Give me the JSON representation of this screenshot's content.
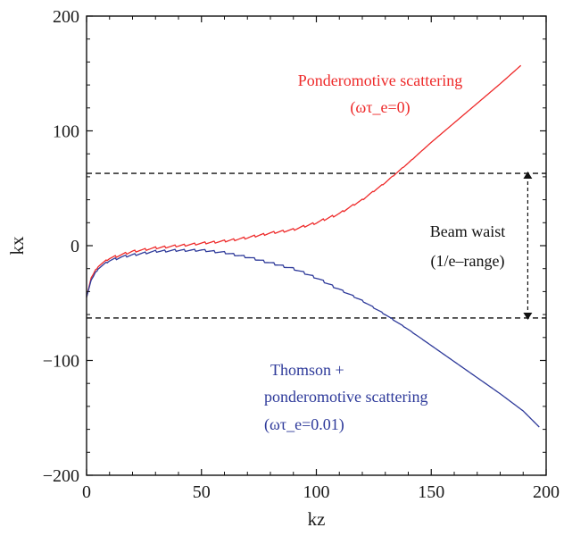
{
  "chart_data": {
    "type": "line",
    "xlabel": "kz",
    "ylabel": "kx",
    "xlim": [
      0,
      200
    ],
    "ylim": [
      -200,
      200
    ],
    "x_ticks": [
      0,
      50,
      100,
      150,
      200
    ],
    "y_ticks": [
      -200,
      -100,
      0,
      100,
      200
    ],
    "x_tick_labels": [
      "0",
      "50",
      "100",
      "150",
      "200"
    ],
    "y_tick_labels": [
      "−200",
      "−100",
      "0",
      "100",
      "200"
    ],
    "grid": false,
    "series": [
      {
        "name": "Ponderomotive scattering (ωτ_e=0)",
        "color": "#ee2a2a",
        "x": [
          0,
          2,
          5,
          10,
          15,
          20,
          30,
          40,
          50,
          60,
          70,
          80,
          90,
          100,
          110,
          120,
          130,
          140,
          150,
          160,
          170,
          180,
          189
        ],
        "y": [
          -45,
          -28,
          -18,
          -11,
          -8,
          -5,
          -2,
          0,
          2,
          4,
          7,
          11,
          14,
          20,
          28,
          40,
          55,
          72,
          90,
          107,
          124,
          141,
          157
        ]
      },
      {
        "name": "Thomson + ponderomotive scattering (ωτ_e=0.01)",
        "color": "#2e3a9a",
        "x": [
          0,
          2,
          5,
          10,
          15,
          20,
          30,
          40,
          50,
          60,
          70,
          80,
          90,
          100,
          110,
          120,
          130,
          140,
          150,
          160,
          170,
          180,
          190,
          197
        ],
        "y": [
          -45,
          -30,
          -20,
          -13,
          -10,
          -8,
          -5,
          -4,
          -4,
          -6,
          -10,
          -15,
          -20,
          -28,
          -38,
          -48,
          -60,
          -73,
          -87,
          -101,
          -115,
          -129,
          -144,
          -158
        ]
      }
    ],
    "reference_lines": [
      {
        "kind": "horizontal",
        "style": "dashed",
        "y": 63
      },
      {
        "kind": "horizontal",
        "style": "dashed",
        "y": -63
      }
    ],
    "beam_arrow": {
      "x": 192,
      "y_from": 63,
      "y_to": -63
    },
    "annotations": {
      "ponder_line1": "Ponderomotive scattering",
      "ponder_line2": "(ωτ_e=0)",
      "beam_line1": "Beam waist",
      "beam_line2": "(1/e–range)",
      "thomson_line1": "Thomson +",
      "thomson_line2": "ponderomotive scattering",
      "thomson_line3": "(ωτ_e=0.01)"
    }
  }
}
